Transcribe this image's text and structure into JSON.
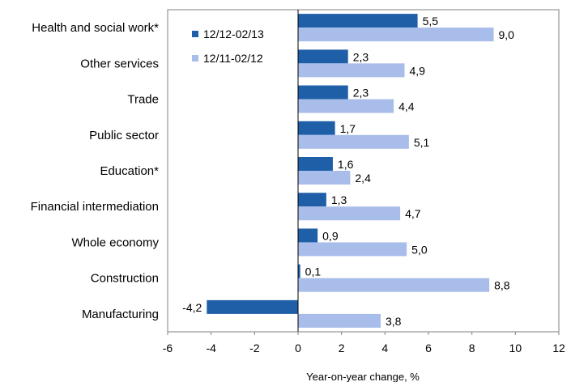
{
  "chart_data": {
    "type": "bar",
    "orientation": "horizontal",
    "categories": [
      "Health and social work*",
      "Other services",
      "Trade",
      "Public sector",
      "Education*",
      "Financial intermediation",
      "Whole economy",
      "Construction",
      "Manufacturing"
    ],
    "series": [
      {
        "name": "12/12-02/13",
        "values": [
          5.5,
          2.3,
          2.3,
          1.7,
          1.6,
          1.3,
          0.9,
          0.1,
          -4.2
        ],
        "labels": [
          "5,5",
          "2,3",
          "2,3",
          "1,7",
          "1,6",
          "1,3",
          "0,9",
          "0,1",
          "-4,2"
        ],
        "color": "#1f5fa8"
      },
      {
        "name": "12/11-02/12",
        "values": [
          9.0,
          4.9,
          4.4,
          5.1,
          2.4,
          4.7,
          5.0,
          8.8,
          3.8
        ],
        "labels": [
          "9,0",
          "4,9",
          "4,4",
          "5,1",
          "2,4",
          "4,7",
          "5,0",
          "8,8",
          "3,8"
        ],
        "color": "#a9bdea"
      }
    ],
    "x_ticks": [
      "-6",
      "-4",
      "-2",
      "0",
      "2",
      "4",
      "6",
      "8",
      "10",
      "12"
    ],
    "xlim": [
      -6,
      12
    ],
    "xlabel": "Year-on-year change, %",
    "grid": false,
    "legend_position": "top-left inside plot"
  }
}
